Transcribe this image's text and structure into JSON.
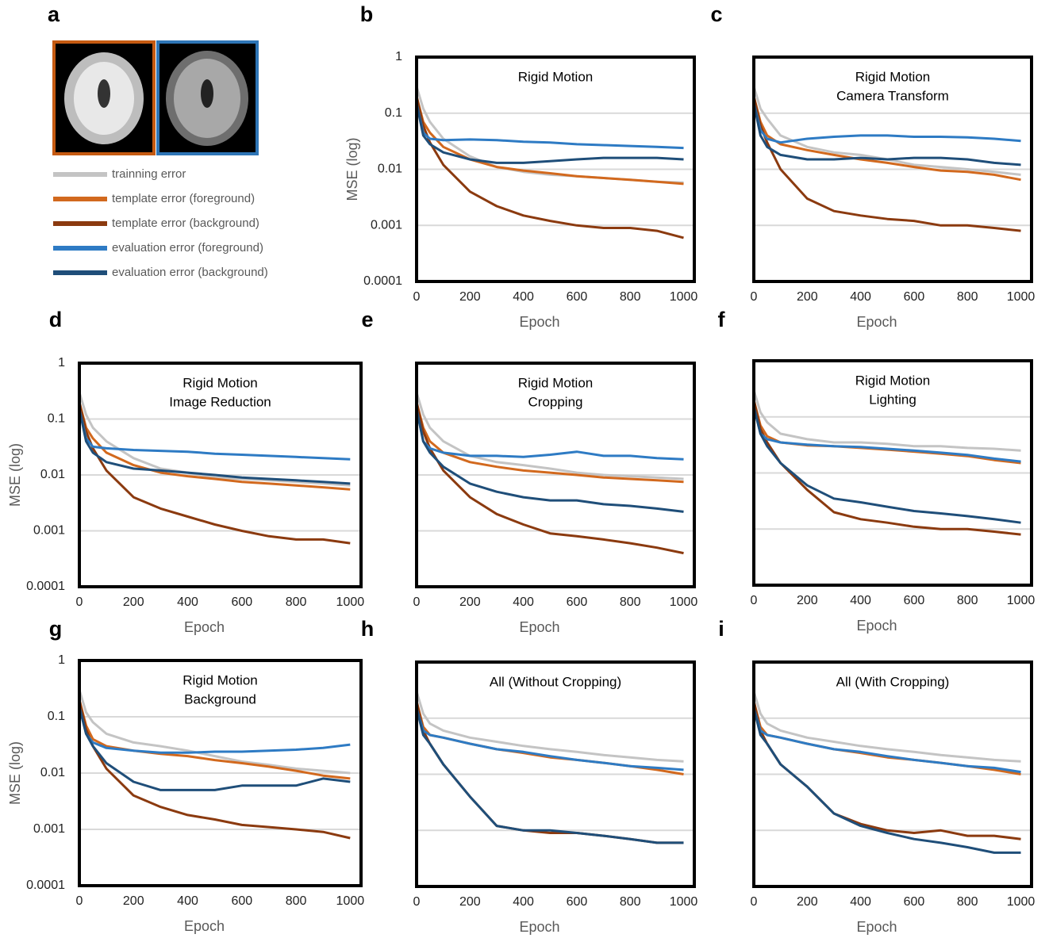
{
  "panel_a": {
    "label": "a",
    "legend": [
      {
        "name": "trainning error",
        "color": "#c4c4c4"
      },
      {
        "name": "template error (foreground)",
        "color": "#d2691e"
      },
      {
        "name": "template error (background)",
        "color": "#8b3a0f"
      },
      {
        "name": "evaluation error (foreground)",
        "color": "#2e7bc4"
      },
      {
        "name": "evaluation error (background)",
        "color": "#1f4e79"
      }
    ]
  },
  "chart_data": [
    {
      "panel_label": "b",
      "type": "line",
      "title": "Rigid Motion",
      "xlabel": "Epoch",
      "ylabel": "MSE  (log)",
      "log_y": true,
      "grid": true,
      "show_ytick_labels": true,
      "x": [
        0,
        25,
        50,
        100,
        200,
        300,
        400,
        500,
        600,
        700,
        800,
        900,
        1000
      ],
      "xlim": [
        0,
        1040
      ],
      "xticks": [
        0,
        200,
        400,
        600,
        800,
        1000
      ],
      "ylim": [
        0.0001,
        1
      ],
      "yticks": [
        1,
        0.1,
        0.01,
        0.001,
        0.0001
      ],
      "series": [
        {
          "values": [
            0.3,
            0.12,
            0.07,
            0.035,
            0.017,
            0.011,
            0.009,
            0.008,
            0.0075,
            0.007,
            0.0065,
            0.006,
            0.0058
          ]
        },
        {
          "values": [
            0.2,
            0.07,
            0.045,
            0.025,
            0.015,
            0.011,
            0.0095,
            0.0085,
            0.0075,
            0.007,
            0.0065,
            0.006,
            0.0055
          ]
        },
        {
          "values": [
            0.2,
            0.06,
            0.03,
            0.012,
            0.004,
            0.0022,
            0.0015,
            0.0012,
            0.001,
            0.0009,
            0.0009,
            0.0008,
            0.0006
          ]
        },
        {
          "values": [
            0.15,
            0.045,
            0.035,
            0.033,
            0.034,
            0.033,
            0.031,
            0.03,
            0.028,
            0.027,
            0.026,
            0.025,
            0.024
          ]
        },
        {
          "values": [
            0.15,
            0.04,
            0.028,
            0.02,
            0.015,
            0.013,
            0.013,
            0.014,
            0.015,
            0.016,
            0.016,
            0.016,
            0.015
          ]
        }
      ]
    },
    {
      "panel_label": "c",
      "type": "line",
      "title": "Rigid Motion",
      "subtitle": "Camera Transform",
      "xlabel": "Epoch",
      "log_y": true,
      "grid": true,
      "show_ytick_labels": false,
      "x": [
        0,
        25,
        50,
        100,
        200,
        300,
        400,
        500,
        600,
        700,
        800,
        900,
        1000
      ],
      "xlim": [
        0,
        1040
      ],
      "xticks": [
        0,
        200,
        400,
        600,
        800,
        1000
      ],
      "ylim": [
        0.0001,
        1
      ],
      "yticks": [
        1,
        0.1,
        0.01,
        0.001,
        0.0001
      ],
      "series": [
        {
          "values": [
            0.3,
            0.12,
            0.08,
            0.04,
            0.025,
            0.02,
            0.018,
            0.015,
            0.012,
            0.011,
            0.01,
            0.009,
            0.008
          ]
        },
        {
          "values": [
            0.2,
            0.07,
            0.04,
            0.028,
            0.022,
            0.018,
            0.015,
            0.013,
            0.011,
            0.0095,
            0.009,
            0.008,
            0.0065
          ]
        },
        {
          "values": [
            0.2,
            0.06,
            0.03,
            0.01,
            0.003,
            0.0018,
            0.0015,
            0.0013,
            0.0012,
            0.001,
            0.001,
            0.0009,
            0.0008
          ]
        },
        {
          "values": [
            0.15,
            0.05,
            0.035,
            0.03,
            0.035,
            0.038,
            0.04,
            0.04,
            0.038,
            0.038,
            0.037,
            0.035,
            0.032
          ]
        },
        {
          "values": [
            0.15,
            0.04,
            0.025,
            0.018,
            0.015,
            0.015,
            0.016,
            0.015,
            0.016,
            0.016,
            0.015,
            0.013,
            0.012
          ]
        }
      ]
    },
    {
      "panel_label": "d",
      "type": "line",
      "title": "Rigid Motion",
      "subtitle": "Image Reduction",
      "xlabel": "Epoch",
      "ylabel": "MSE  (log)",
      "log_y": true,
      "grid": true,
      "show_ytick_labels": true,
      "x": [
        0,
        25,
        50,
        100,
        200,
        300,
        400,
        500,
        600,
        700,
        800,
        900,
        1000
      ],
      "xlim": [
        0,
        1040
      ],
      "xticks": [
        0,
        200,
        400,
        600,
        800,
        1000
      ],
      "ylim": [
        0.0001,
        1
      ],
      "yticks": [
        1,
        0.1,
        0.01,
        0.001,
        0.0001
      ],
      "series": [
        {
          "values": [
            0.3,
            0.12,
            0.07,
            0.04,
            0.02,
            0.013,
            0.011,
            0.009,
            0.0085,
            0.008,
            0.0075,
            0.007,
            0.0065
          ]
        },
        {
          "values": [
            0.2,
            0.07,
            0.045,
            0.025,
            0.015,
            0.011,
            0.0095,
            0.0085,
            0.0075,
            0.007,
            0.0065,
            0.006,
            0.0055
          ]
        },
        {
          "values": [
            0.2,
            0.06,
            0.03,
            0.012,
            0.004,
            0.0025,
            0.0018,
            0.0013,
            0.001,
            0.0008,
            0.0007,
            0.0007,
            0.0006
          ]
        },
        {
          "values": [
            0.15,
            0.045,
            0.032,
            0.03,
            0.028,
            0.027,
            0.026,
            0.024,
            0.023,
            0.022,
            0.021,
            0.02,
            0.019
          ]
        },
        {
          "values": [
            0.15,
            0.04,
            0.025,
            0.017,
            0.013,
            0.012,
            0.011,
            0.01,
            0.009,
            0.0085,
            0.008,
            0.0075,
            0.007
          ]
        }
      ]
    },
    {
      "panel_label": "e",
      "type": "line",
      "title": "Rigid Motion",
      "subtitle": "Cropping",
      "xlabel": "Epoch",
      "log_y": true,
      "grid": true,
      "show_ytick_labels": false,
      "x": [
        0,
        25,
        50,
        100,
        200,
        300,
        400,
        500,
        600,
        700,
        800,
        900,
        1000
      ],
      "xlim": [
        0,
        1040
      ],
      "xticks": [
        0,
        200,
        400,
        600,
        800,
        1000
      ],
      "ylim": [
        0.0001,
        1
      ],
      "yticks": [
        1,
        0.1,
        0.01,
        0.001,
        0.0001
      ],
      "series": [
        {
          "values": [
            0.3,
            0.12,
            0.07,
            0.04,
            0.022,
            0.017,
            0.015,
            0.013,
            0.011,
            0.01,
            0.0095,
            0.009,
            0.0085
          ]
        },
        {
          "values": [
            0.2,
            0.07,
            0.04,
            0.025,
            0.017,
            0.014,
            0.012,
            0.011,
            0.01,
            0.009,
            0.0085,
            0.008,
            0.0075
          ]
        },
        {
          "values": [
            0.2,
            0.06,
            0.03,
            0.012,
            0.004,
            0.002,
            0.0013,
            0.0009,
            0.0008,
            0.0007,
            0.0006,
            0.0005,
            0.0004
          ]
        },
        {
          "values": [
            0.15,
            0.04,
            0.03,
            0.025,
            0.022,
            0.022,
            0.021,
            0.023,
            0.026,
            0.022,
            0.022,
            0.02,
            0.019
          ]
        },
        {
          "values": [
            0.15,
            0.04,
            0.025,
            0.014,
            0.007,
            0.005,
            0.004,
            0.0035,
            0.0035,
            0.003,
            0.0028,
            0.0025,
            0.0022
          ]
        }
      ]
    },
    {
      "panel_label": "f",
      "type": "line",
      "title": "Rigid Motion",
      "subtitle": "Lighting",
      "xlabel": "Epoch",
      "log_y": true,
      "grid": true,
      "show_ytick_labels": false,
      "x": [
        0,
        25,
        50,
        100,
        200,
        300,
        400,
        500,
        600,
        700,
        800,
        900,
        1000
      ],
      "xlim": [
        0,
        1040
      ],
      "xticks": [
        0,
        200,
        400,
        600,
        800,
        1000
      ],
      "ylim": [
        0.0001,
        1
      ],
      "yticks": [
        1,
        0.1,
        0.01,
        0.001,
        0.0001
      ],
      "series": [
        {
          "values": [
            0.3,
            0.12,
            0.08,
            0.05,
            0.04,
            0.035,
            0.035,
            0.033,
            0.03,
            0.03,
            0.028,
            0.027,
            0.025
          ]
        },
        {
          "values": [
            0.2,
            0.07,
            0.045,
            0.035,
            0.031,
            0.03,
            0.028,
            0.026,
            0.024,
            0.022,
            0.02,
            0.017,
            0.015
          ]
        },
        {
          "values": [
            0.2,
            0.06,
            0.035,
            0.015,
            0.005,
            0.002,
            0.0015,
            0.0013,
            0.0011,
            0.001,
            0.001,
            0.0009,
            0.0008
          ]
        },
        {
          "values": [
            0.15,
            0.05,
            0.04,
            0.035,
            0.032,
            0.03,
            0.029,
            0.027,
            0.025,
            0.023,
            0.021,
            0.018,
            0.016
          ]
        },
        {
          "values": [
            0.15,
            0.05,
            0.03,
            0.015,
            0.006,
            0.0035,
            0.003,
            0.0025,
            0.0021,
            0.0019,
            0.0017,
            0.0015,
            0.0013
          ]
        }
      ]
    },
    {
      "panel_label": "g",
      "type": "line",
      "title": "Rigid Motion",
      "subtitle": "Background",
      "xlabel": "Epoch",
      "ylabel": "MSE  (log)",
      "log_y": true,
      "grid": true,
      "show_ytick_labels": true,
      "x": [
        0,
        25,
        50,
        100,
        200,
        300,
        400,
        500,
        600,
        700,
        800,
        900,
        1000
      ],
      "xlim": [
        0,
        1040
      ],
      "xticks": [
        0,
        200,
        400,
        600,
        800,
        1000
      ],
      "ylim": [
        0.0001,
        1
      ],
      "yticks": [
        1,
        0.1,
        0.01,
        0.001,
        0.0001
      ],
      "series": [
        {
          "values": [
            0.3,
            0.12,
            0.08,
            0.05,
            0.035,
            0.03,
            0.025,
            0.02,
            0.016,
            0.014,
            0.012,
            0.011,
            0.01
          ]
        },
        {
          "values": [
            0.2,
            0.07,
            0.04,
            0.03,
            0.025,
            0.022,
            0.02,
            0.017,
            0.015,
            0.013,
            0.011,
            0.009,
            0.008
          ]
        },
        {
          "values": [
            0.2,
            0.06,
            0.03,
            0.012,
            0.004,
            0.0025,
            0.0018,
            0.0015,
            0.0012,
            0.0011,
            0.001,
            0.0009,
            0.0007
          ]
        },
        {
          "values": [
            0.15,
            0.05,
            0.035,
            0.028,
            0.025,
            0.023,
            0.023,
            0.024,
            0.024,
            0.025,
            0.026,
            0.028,
            0.032
          ]
        },
        {
          "values": [
            0.15,
            0.05,
            0.03,
            0.015,
            0.007,
            0.005,
            0.005,
            0.005,
            0.006,
            0.006,
            0.006,
            0.008,
            0.007
          ]
        }
      ]
    },
    {
      "panel_label": "h",
      "type": "line",
      "title": "All (Without Cropping)",
      "xlabel": "Epoch",
      "log_y": true,
      "grid": true,
      "show_ytick_labels": false,
      "x": [
        0,
        25,
        50,
        100,
        200,
        300,
        400,
        500,
        600,
        700,
        800,
        900,
        1000
      ],
      "xlim": [
        0,
        1040
      ],
      "xticks": [
        0,
        200,
        400,
        600,
        800,
        1000
      ],
      "ylim": [
        0.0001,
        1
      ],
      "yticks": [
        1,
        0.1,
        0.01,
        0.001,
        0.0001
      ],
      "series": [
        {
          "values": [
            0.3,
            0.12,
            0.08,
            0.06,
            0.045,
            0.038,
            0.032,
            0.028,
            0.025,
            0.022,
            0.02,
            0.018,
            0.017
          ]
        },
        {
          "values": [
            0.2,
            0.07,
            0.05,
            0.045,
            0.035,
            0.028,
            0.024,
            0.02,
            0.018,
            0.016,
            0.014,
            0.012,
            0.01
          ]
        },
        {
          "values": [
            0.2,
            0.06,
            0.035,
            0.015,
            0.004,
            0.0012,
            0.001,
            0.0009,
            0.0009,
            0.0008,
            0.0007,
            0.0006,
            0.0006
          ]
        },
        {
          "values": [
            0.15,
            0.06,
            0.05,
            0.045,
            0.035,
            0.028,
            0.025,
            0.021,
            0.018,
            0.016,
            0.014,
            0.013,
            0.012
          ]
        },
        {
          "values": [
            0.15,
            0.05,
            0.035,
            0.015,
            0.004,
            0.0012,
            0.001,
            0.001,
            0.0009,
            0.0008,
            0.0007,
            0.0006,
            0.0006
          ]
        }
      ]
    },
    {
      "panel_label": "i",
      "type": "line",
      "title": "All (With Cropping)",
      "xlabel": "Epoch",
      "log_y": true,
      "grid": true,
      "show_ytick_labels": false,
      "x": [
        0,
        25,
        50,
        100,
        200,
        300,
        400,
        500,
        600,
        700,
        800,
        900,
        1000
      ],
      "xlim": [
        0,
        1040
      ],
      "xticks": [
        0,
        200,
        400,
        600,
        800,
        1000
      ],
      "ylim": [
        0.0001,
        1
      ],
      "yticks": [
        1,
        0.1,
        0.01,
        0.001,
        0.0001
      ],
      "series": [
        {
          "values": [
            0.3,
            0.12,
            0.08,
            0.06,
            0.045,
            0.038,
            0.032,
            0.028,
            0.025,
            0.022,
            0.02,
            0.018,
            0.017
          ]
        },
        {
          "values": [
            0.2,
            0.07,
            0.05,
            0.045,
            0.035,
            0.028,
            0.024,
            0.02,
            0.018,
            0.016,
            0.014,
            0.012,
            0.01
          ]
        },
        {
          "values": [
            0.2,
            0.06,
            0.035,
            0.015,
            0.006,
            0.002,
            0.0013,
            0.001,
            0.0009,
            0.001,
            0.0008,
            0.0008,
            0.0007
          ]
        },
        {
          "values": [
            0.15,
            0.06,
            0.05,
            0.045,
            0.035,
            0.028,
            0.025,
            0.021,
            0.018,
            0.016,
            0.014,
            0.013,
            0.011
          ]
        },
        {
          "values": [
            0.15,
            0.05,
            0.035,
            0.015,
            0.006,
            0.002,
            0.0012,
            0.0009,
            0.0007,
            0.0006,
            0.0005,
            0.0004,
            0.0004
          ]
        }
      ]
    }
  ]
}
